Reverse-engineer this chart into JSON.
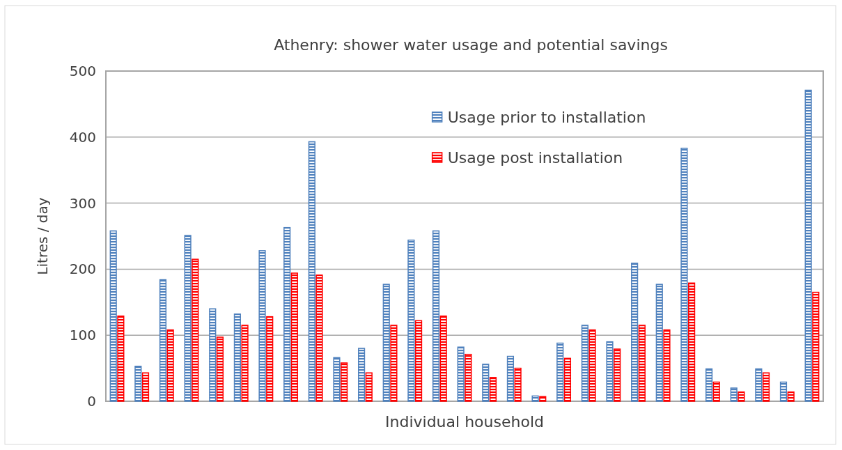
{
  "chart_data": {
    "type": "bar",
    "title": "Athenry: shower water usage and potential savings",
    "xlabel": "Individual household",
    "ylabel": "Litres / day",
    "categories": [
      null,
      null,
      null,
      null,
      null,
      null,
      null,
      null,
      null,
      null,
      null,
      null,
      null,
      null,
      null,
      null,
      null,
      null,
      null,
      null,
      null,
      null,
      null,
      null,
      null,
      null,
      null,
      null,
      null
    ],
    "series": [
      {
        "name": "Usage prior to installation",
        "color": "#4f81bd",
        "values": [
          258,
          53,
          184,
          251,
          140,
          132,
          228,
          263,
          393,
          66,
          80,
          177,
          244,
          258,
          82,
          56,
          68,
          8,
          88,
          115,
          90,
          209,
          177,
          383,
          49,
          20,
          49,
          29,
          471
        ]
      },
      {
        "name": "Usage post installation",
        "color": "#ff0000",
        "values": [
          129,
          43,
          108,
          215,
          97,
          115,
          128,
          194,
          191,
          58,
          43,
          115,
          122,
          129,
          71,
          36,
          50,
          7,
          65,
          108,
          79,
          115,
          108,
          179,
          29,
          14,
          43,
          14,
          165
        ]
      }
    ],
    "ylim": [
      0,
      500
    ],
    "yticks": [
      0,
      100,
      200,
      300,
      400,
      500
    ],
    "grid": "y",
    "legend": "top right"
  }
}
